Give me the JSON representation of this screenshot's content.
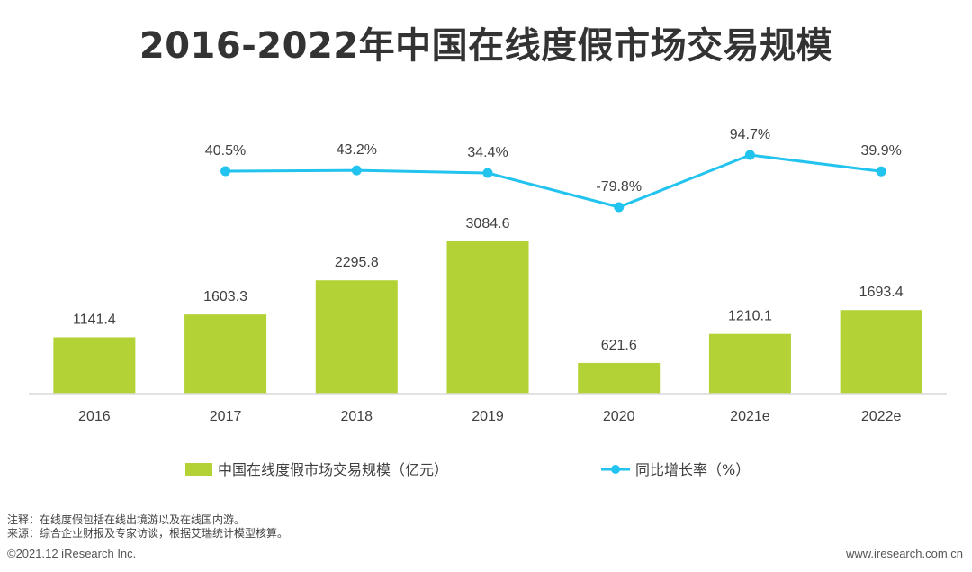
{
  "title": "2016-2022年中国在线度假市场交易规模",
  "chart_data": {
    "type": "bar",
    "categories": [
      "2016",
      "2017",
      "2018",
      "2019",
      "2020",
      "2021e",
      "2022e"
    ],
    "series": [
      {
        "name": "中国在线度假市场交易规模（亿元）",
        "type": "bar",
        "color": "#b2d235",
        "values": [
          1141.4,
          1603.3,
          2295.8,
          3084.6,
          621.6,
          1210.1,
          1693.4
        ],
        "labels": [
          "1141.4",
          "1603.3",
          "2295.8",
          "3084.6",
          "621.6",
          "1210.1",
          "1693.4"
        ]
      },
      {
        "name": "同比增长率（%）",
        "type": "line",
        "color": "#22c3ee",
        "values": [
          null,
          40.5,
          43.2,
          34.4,
          -79.8,
          94.7,
          39.9
        ],
        "labels": [
          "",
          "40.5%",
          "43.2%",
          "34.4%",
          "-79.8%",
          "94.7%",
          "39.9%"
        ]
      }
    ],
    "legend_position": "bottom",
    "grid": false
  },
  "notes": {
    "line1": "注释：在线度假包括在线出境游以及在线国内游。",
    "line2": "来源：综合企业财报及专家访谈，根据艾瑞统计模型核算。"
  },
  "footer": {
    "copyright": "©2021.12 iResearch Inc.",
    "website": "www.iresearch.com.cn"
  }
}
